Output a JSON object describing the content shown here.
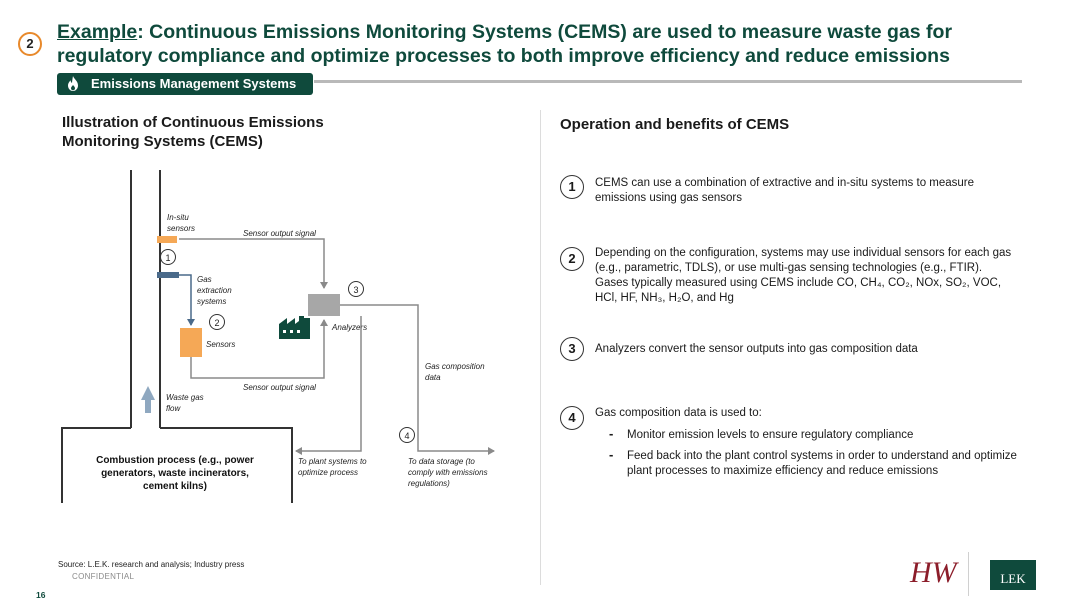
{
  "header": {
    "badge": "2",
    "title_prefix": "Example",
    "title_rest": ": Continuous Emissions Monitoring Systems (CEMS) are used to measure waste gas for regulatory compliance and optimize processes to both improve efficiency and reduce emissions",
    "tag_label": "Emissions Management Systems",
    "colors": {
      "accent_green": "#0f4a3c",
      "badge_orange": "#e8892b"
    }
  },
  "left": {
    "heading": "Illustration of Continuous Emissions Monitoring Systems (CEMS)",
    "diagram": {
      "in_situ_sensors": "In-situ sensors",
      "sensor_output_signal_top": "Sensor output signal",
      "gas_extraction_systems": "Gas extraction systems",
      "sensors": "Sensors",
      "analyzers": "Analyzers",
      "sensor_output_signal_bottom": "Sensor output signal",
      "gas_composition_data": "Gas composition data",
      "waste_gas_flow": "Waste gas flow",
      "combustion_process": "Combustion process (e.g., power generators, waste incinerators, cement kilns)",
      "to_plant_systems": "To plant systems to optimize process",
      "to_data_storage": "To data storage (to comply with emissions regulations)",
      "markers": [
        "1",
        "2",
        "3",
        "4"
      ]
    }
  },
  "right": {
    "heading": "Operation and benefits of CEMS",
    "items": [
      {
        "num": "1",
        "text": "CEMS can use a combination of extractive and in-situ systems to measure emissions using gas sensors"
      },
      {
        "num": "2",
        "text": "Depending on the configuration, systems may use individual sensors for each gas (e.g., parametric, TDLS), or use multi-gas sensing technologies (e.g., FTIR). Gases typically measured using CEMS include CO, CH₄, CO₂, NOx, SO₂, VOC, HCl, HF, NH₃, H₂O, and Hg"
      },
      {
        "num": "3",
        "text": "Analyzers convert the sensor outputs into gas composition data"
      },
      {
        "num": "4",
        "text": "Gas composition data is used to:"
      }
    ],
    "bullets": [
      "Monitor emission levels to ensure regulatory compliance",
      "Feed back into the plant control systems in order to understand and optimize plant processes to maximize efficiency and reduce emissions"
    ]
  },
  "footer": {
    "source": "Source: L.E.K. research and analysis; Industry press",
    "confidential": "CONFIDENTIAL",
    "page": "16",
    "logo_hw": "HW",
    "logo_lek": "LEK"
  }
}
